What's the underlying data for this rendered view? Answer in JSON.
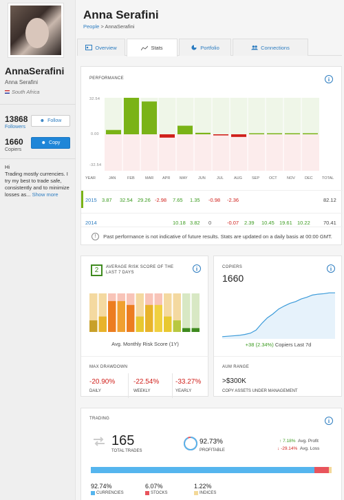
{
  "profile": {
    "username": "AnnaSerafini",
    "full_name": "Anna Serafini",
    "country": "South Africa",
    "followers": "13868",
    "followers_label": "Followers",
    "copiers": "1660",
    "copiers_label": "Copiers",
    "follow_btn": "Follow",
    "copy_btn": "Copy",
    "about": "Hi\nTrading mostly currencies. I try my best to trade safe, consistently and to minimize losses as...",
    "show_more": "Show more"
  },
  "header": {
    "title": "Anna Serafini",
    "crumb_root": "People",
    "crumb_sep": " > ",
    "crumb_current": "AnnaSerafini"
  },
  "tabs": [
    {
      "label": "Overview"
    },
    {
      "label": "Stats"
    },
    {
      "label": "Portfolio"
    },
    {
      "label": "Connections"
    }
  ],
  "performance": {
    "heading": "PERFORMANCE",
    "ytick_top": "32.54",
    "ytick_mid": "0.00",
    "ytick_bot": "-32.54",
    "months": [
      "YEAR",
      "JAN",
      "FEB",
      "MAR",
      "APR",
      "MAY",
      "JUN",
      "JUL",
      "AUG",
      "SEP",
      "OCT",
      "NOV",
      "DEC",
      "TOTAL"
    ],
    "rows": [
      {
        "year": "2015",
        "values": [
          "3.87",
          "32.54",
          "29.26",
          "-2.98",
          "7.65",
          "1.35",
          "-0.98",
          "-2.36",
          "",
          "",
          "",
          "",
          ""
        ],
        "total": "82.12"
      },
      {
        "year": "2014",
        "values": [
          "",
          "",
          "",
          "",
          "10.18",
          "3.82",
          "0",
          "-0.07",
          "2.39",
          "10.45",
          "19.61",
          "10.22",
          ""
        ],
        "total": "70.41"
      }
    ],
    "disclaimer": "Past performance is not indicative of future results. Stats are updated on a daily basis at 00:00 GMT."
  },
  "chart_data": [
    {
      "type": "bar",
      "title": "PERFORMANCE",
      "categories": [
        "JAN",
        "FEB",
        "MAR",
        "APR",
        "MAY",
        "JUN",
        "JUL",
        "AUG",
        "SEP",
        "OCT",
        "NOV",
        "DEC"
      ],
      "series": [
        {
          "name": "2015",
          "values": [
            3.87,
            32.54,
            29.26,
            -2.98,
            7.65,
            1.35,
            -0.98,
            -2.36,
            0,
            0,
            0,
            0
          ]
        }
      ],
      "ylim": [
        -32.54,
        32.54
      ]
    },
    {
      "type": "bar",
      "title": "Avg. Monthly Risk Score (1Y)",
      "categories": [
        "1",
        "2",
        "3",
        "4",
        "5",
        "6",
        "7",
        "8",
        "9",
        "10",
        "11",
        "12"
      ],
      "values": [
        3,
        4,
        8,
        8,
        7,
        4,
        7,
        7,
        4,
        3,
        1,
        1
      ],
      "ylim": [
        0,
        10
      ]
    },
    {
      "type": "line",
      "title": "COPIERS",
      "x": [
        0,
        1,
        2,
        3,
        4,
        5,
        6,
        7,
        8,
        9,
        10,
        11,
        12,
        13,
        14,
        15,
        16,
        17,
        18,
        19,
        20
      ],
      "values": [
        1560,
        1561,
        1562,
        1563,
        1565,
        1568,
        1575,
        1590,
        1603,
        1612,
        1623,
        1630,
        1636,
        1640,
        1646,
        1650,
        1655,
        1657,
        1658,
        1660,
        1660
      ]
    }
  ],
  "risk": {
    "score": "2",
    "heading": "AVERAGE RISK SCORE OF THE LAST 7 DAYS",
    "caption": "Avg. Monthly Risk Score (1Y)",
    "colors": [
      "#f4d9a0",
      "#f4d9a0",
      "#f8c4b8",
      "#f8c4b8",
      "#f8c4b8",
      "#f4d9a0",
      "#f8c4b8",
      "#f8c4b8",
      "#f4d9a0",
      "#f4d9a0",
      "#d8e8c4",
      "#d8e8c4"
    ],
    "fill_colors": [
      "#c8a02a",
      "#e8b32a",
      "#ec7d20",
      "#f0a030",
      "#ec7d20",
      "#e8c830",
      "#e8b32a",
      "#f0d040",
      "#e8c830",
      "#b8c840",
      "#3e8a1e",
      "#3e8a1e"
    ]
  },
  "copiers": {
    "heading": "COPIERS",
    "value": "1660",
    "delta": "+38 (2.34%)",
    "delta_label": "Copiers Last 7d"
  },
  "drawdown": {
    "heading": "MAX DRAWDOWN",
    "items": [
      {
        "value": "-20.90%",
        "label": "DAILY"
      },
      {
        "value": "-22.54%",
        "label": "WEEKLY"
      },
      {
        "value": "-33.27%",
        "label": "YEARLY"
      }
    ]
  },
  "aum": {
    "heading": "AUM RANGE",
    "value": ">$300K",
    "label": "COPY ASSETS UNDER MANAGEMENT"
  },
  "trading": {
    "heading": "TRADING",
    "total": "165",
    "total_label": "TOTAL TRADES",
    "profitable": "92.73%",
    "profitable_label": "PROFITABLE",
    "avg_profit": "7.18%",
    "avg_profit_label": "Avg. Profit",
    "avg_loss": "-29.14%",
    "avg_loss_label": "Avg. Loss",
    "split": [
      {
        "value": "92.74%",
        "label": "CURRENCIES",
        "color": "#55b5ee",
        "pct": 92.74
      },
      {
        "value": "6.07%",
        "label": "STOCKS",
        "color": "#e8545c",
        "pct": 6.07
      },
      {
        "value": "1.22%",
        "label": "INDICES",
        "color": "#f3d999",
        "pct": 1.22
      }
    ]
  },
  "colors": {
    "accent": "#2c7cc0",
    "green": "#7ab317",
    "red": "#d0201b"
  }
}
